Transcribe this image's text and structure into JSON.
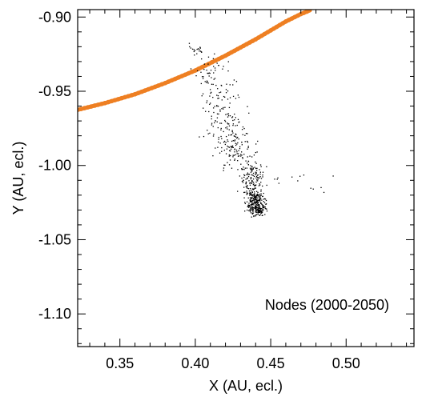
{
  "chart_data": {
    "type": "scatter",
    "xlabel": "X (AU, ecl.)",
    "ylabel": "Y (AU, ecl.)",
    "xlim": [
      0.322,
      0.545
    ],
    "ylim": [
      -1.122,
      -0.895
    ],
    "xticks": [
      0.35,
      0.4,
      0.45,
      0.5
    ],
    "xtick_labels": [
      "0.35",
      "0.40",
      "0.45",
      "0.50"
    ],
    "yticks": [
      -0.9,
      -0.95,
      -1.0,
      -1.05,
      -1.1
    ],
    "ytick_labels": [
      "-0.90",
      "-0.95",
      "-1.00",
      "-1.05",
      "-1.10"
    ],
    "annotation": "Nodes (2000-2050)",
    "grid": false,
    "colors": {
      "orbit": "#ee7f22",
      "nodes": "#000000"
    },
    "orbit_curve": {
      "x": [
        0.322,
        0.34,
        0.36,
        0.38,
        0.4,
        0.42,
        0.44,
        0.46,
        0.47,
        0.476
      ],
      "y": [
        -0.9625,
        -0.958,
        -0.952,
        -0.9445,
        -0.936,
        -0.926,
        -0.915,
        -0.903,
        -0.898,
        -0.8955
      ]
    },
    "node_clusters": [
      {
        "cx": 0.4,
        "cy": -0.922,
        "sx": 0.003,
        "sy": 0.002,
        "n": 18
      },
      {
        "cx": 0.41,
        "cy": -0.942,
        "sx": 0.005,
        "sy": 0.008,
        "n": 60
      },
      {
        "cx": 0.418,
        "cy": -0.97,
        "sx": 0.006,
        "sy": 0.01,
        "n": 90
      },
      {
        "cx": 0.428,
        "cy": -0.99,
        "sx": 0.006,
        "sy": 0.008,
        "n": 110
      },
      {
        "cx": 0.437,
        "cy": -1.01,
        "sx": 0.004,
        "sy": 0.006,
        "n": 140
      },
      {
        "cx": 0.44,
        "cy": -1.025,
        "sx": 0.003,
        "sy": 0.004,
        "n": 220
      },
      {
        "cx": 0.442,
        "cy": -1.03,
        "sx": 0.002,
        "sy": 0.002,
        "n": 60
      },
      {
        "cx": 0.462,
        "cy": -1.009,
        "sx": 0.015,
        "sy": 0.004,
        "n": 14
      },
      {
        "cx": 0.42,
        "cy": -0.965,
        "sx": 0.012,
        "sy": 0.012,
        "n": 25
      }
    ]
  }
}
